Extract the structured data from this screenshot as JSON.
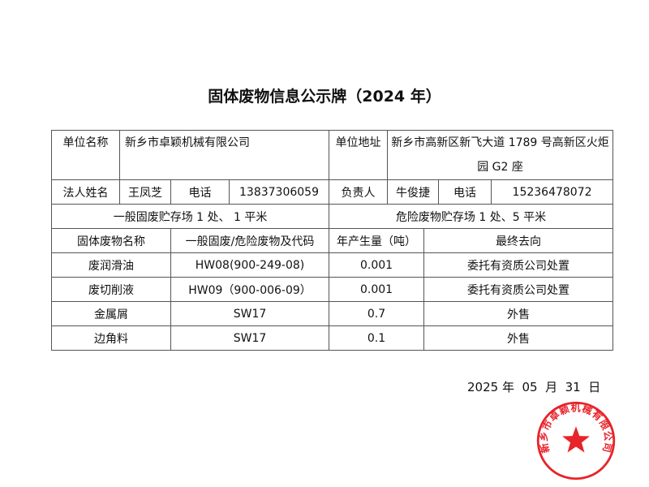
{
  "title": "固体废物信息公示牌（2024 年）",
  "info": {
    "unit_name_label": "单位名称",
    "unit_name": "新乡市卓颖机械有限公司",
    "unit_address_label": "单位地址",
    "unit_address": "新乡市高新区新飞大道 1789 号高新区火炬园 G2 座",
    "legal_person_label": "法人姓名",
    "legal_person": "王凤芝",
    "phone_label": "电话",
    "legal_phone": "13837306059",
    "manager_label": "负责人",
    "manager": "牛俊捷",
    "manager_phone": "15236478072",
    "general_storage": "一般固废贮存场 1 处、 1 平米",
    "hazardous_storage": "危险废物贮存场 1 处、5 平米"
  },
  "waste_table": {
    "headers": [
      "固体废物名称",
      "一般固废/危险废物及代码",
      "年产生量（吨）",
      "最终去向"
    ],
    "rows": [
      [
        "废润滑油",
        "HW08(900-249-08)",
        "0.001",
        "委托有资质公司处置"
      ],
      [
        "废切削液",
        "HW09（900-006-09）",
        "0.001",
        "委托有资质公司处置"
      ],
      [
        "金属屑",
        "SW17",
        "0.7",
        "外售"
      ],
      [
        "边角料",
        "SW17",
        "0.1",
        "外售"
      ]
    ]
  },
  "date": "2025 年  05  月  31  日",
  "stamp": {
    "text": "新乡市卓颖机械有限公司",
    "color": "#e8232a"
  }
}
